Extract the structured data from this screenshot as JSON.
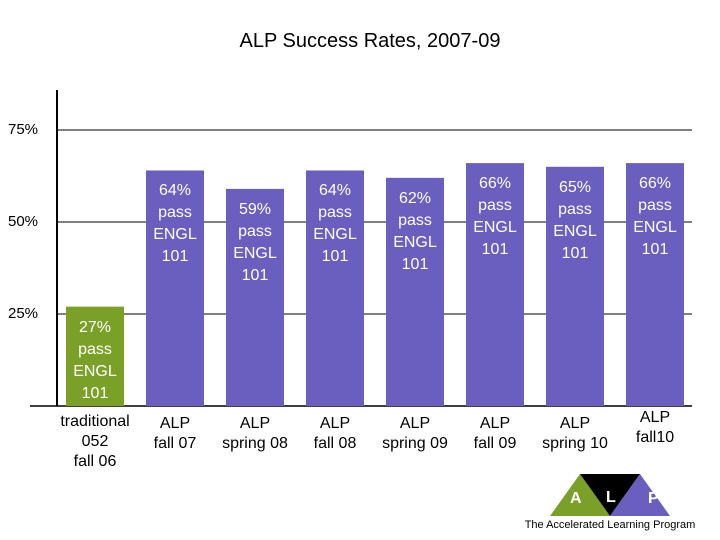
{
  "chart_data": {
    "type": "bar",
    "title": "ALP Success Rates, 2007-09",
    "xlabel": "",
    "ylabel": "",
    "ylim": [
      0,
      75
    ],
    "yticks": [
      "75%",
      "50%",
      "25%"
    ],
    "ytick_values": [
      75,
      50,
      25
    ],
    "grid": true,
    "categories": [
      "traditional\n052\nfall 06",
      "ALP\nfall 07",
      "ALP\nspring 08",
      "ALP\nfall 08",
      "ALP\nspring 09",
      "ALP\nfall 09",
      "ALP\nspring 10",
      "ALP\nfall10"
    ],
    "values": [
      27,
      64,
      59,
      64,
      62,
      66,
      65,
      66
    ],
    "data_labels": [
      "27%\npass\nENGL\n101",
      "64%\npass\nENGL\n101",
      "59%\npass\nENGL\n101",
      "64%\npass\nENGL\n101",
      "62%\npass\nENGL\n101",
      "66%\npass\nENGL\n101",
      "65%\npass\nENGL\n101",
      "66%\npass\nENGL\n101"
    ],
    "colors": [
      "#7aa028",
      "#6a5ebe",
      "#6a5ebe",
      "#6a5ebe",
      "#6a5ebe",
      "#6a5ebe",
      "#6a5ebe",
      "#6a5ebe"
    ]
  },
  "logo": {
    "letters": [
      "A",
      "L",
      "P"
    ],
    "colors": [
      "#7aa028",
      "#000000",
      "#6a5ebe"
    ],
    "text": "The Accelerated Learning Program"
  }
}
